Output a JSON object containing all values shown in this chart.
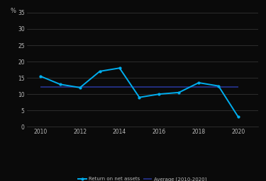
{
  "x_data": [
    2010,
    2011,
    2012,
    2013,
    2014,
    2015,
    2016,
    2017,
    2018,
    2019,
    2020
  ],
  "y_data": [
    15.5,
    13.0,
    12.0,
    17.0,
    18.0,
    9.0,
    10.0,
    10.5,
    13.5,
    12.5,
    3.0
  ],
  "average_value": 12.3,
  "ylim": [
    0,
    35
  ],
  "yticks": [
    0,
    5,
    10,
    15,
    20,
    25,
    30,
    35
  ],
  "xticks": [
    2010,
    2012,
    2014,
    2016,
    2018,
    2020
  ],
  "xlim": [
    2009.3,
    2021.0
  ],
  "line_color": "#00AEEF",
  "avg_line_color": "#283593",
  "bg_color": "#0a0a0a",
  "text_color": "#BBBBBB",
  "grid_color": "#3a3a3a",
  "legend_line_label": "Return on net assets",
  "legend_avg_label": "Average [2010-2020]",
  "pct_label": "%"
}
